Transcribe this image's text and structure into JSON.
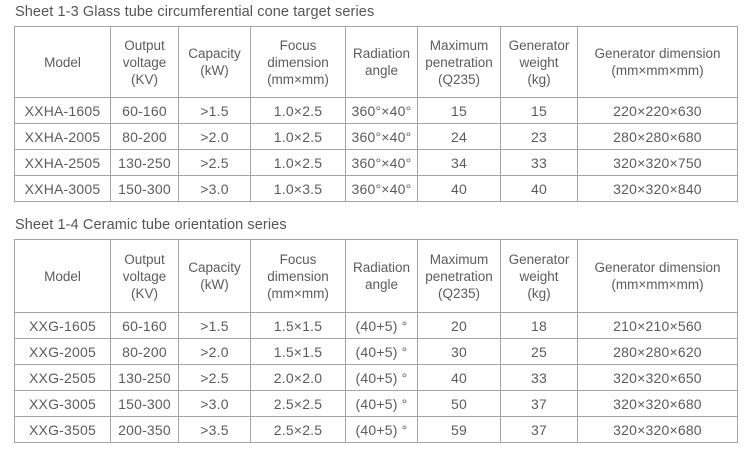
{
  "colors": {
    "text": "#5c5c5c",
    "border": "#a4a4a4",
    "background": "#ffffff"
  },
  "tables": [
    {
      "title": "Sheet 1-3 Glass tube circumferential cone target series",
      "headers": [
        {
          "id": "model",
          "lines": [
            "Model"
          ]
        },
        {
          "id": "output-voltage",
          "lines": [
            "Output",
            "voltage",
            "(KV)"
          ]
        },
        {
          "id": "capacity",
          "lines": [
            "Capacity",
            "(kW)"
          ]
        },
        {
          "id": "focus-dimension",
          "lines": [
            "Focus",
            "dimension",
            "(mm×mm)"
          ]
        },
        {
          "id": "radiation-angle",
          "lines": [
            "Radiation",
            "angle"
          ]
        },
        {
          "id": "maximum-penetration",
          "lines": [
            "Maximum",
            "penetration",
            "(Q235)"
          ]
        },
        {
          "id": "generator-weight",
          "lines": [
            "Generator",
            "weight",
            "(kg)"
          ]
        },
        {
          "id": "generator-dimension",
          "lines": [
            "Generator dimension",
            "(mm×mm×mm)"
          ]
        }
      ],
      "rows": [
        [
          "XXHA-1605",
          "60-160",
          ">1.5",
          "1.0×2.5",
          "360°×40°",
          "15",
          "15",
          "220×220×630"
        ],
        [
          "XXHA-2005",
          "80-200",
          ">2.0",
          "1.0×2.5",
          "360°×40°",
          "24",
          "23",
          "280×280×680"
        ],
        [
          "XXHA-2505",
          "130-250",
          ">2.5",
          "1.0×2.5",
          "360°×40°",
          "34",
          "33",
          "320×320×750"
        ],
        [
          "XXHA-3005",
          "150-300",
          ">3.0",
          "1.0×3.5",
          "360°×40°",
          "40",
          "40",
          "320×320×840"
        ]
      ]
    },
    {
      "title": "Sheet 1-4 Ceramic tube orientation series",
      "headers": [
        {
          "id": "model",
          "lines": [
            "Model"
          ]
        },
        {
          "id": "output-voltage",
          "lines": [
            "Output",
            "voltage",
            "(KV)"
          ]
        },
        {
          "id": "capacity",
          "lines": [
            "Capacity",
            "(kW)"
          ]
        },
        {
          "id": "focus-dimension",
          "lines": [
            "Focus",
            "dimension",
            "(mm×mm)"
          ]
        },
        {
          "id": "radiation-angle",
          "lines": [
            "Radiation",
            "angle"
          ]
        },
        {
          "id": "maximum-penetration",
          "lines": [
            "Maximum",
            "penetration",
            "(Q235)"
          ]
        },
        {
          "id": "generator-weight",
          "lines": [
            "Generator",
            "weight",
            "(kg)"
          ]
        },
        {
          "id": "generator-dimension",
          "lines": [
            "Generator dimension",
            "(mm×mm×mm)"
          ]
        }
      ],
      "rows": [
        [
          "XXG-1605",
          "60-160",
          ">1.5",
          "1.5×1.5",
          "(40+5) °",
          "20",
          "18",
          "210×210×560"
        ],
        [
          "XXG-2005",
          "80-200",
          ">2.0",
          "1.5×1.5",
          "(40+5) °",
          "30",
          "25",
          "280×280×620"
        ],
        [
          "XXG-2505",
          "130-250",
          ">2.5",
          "2.0×2.0",
          "(40+5) °",
          "40",
          "33",
          "320×320×650"
        ],
        [
          "XXG-3005",
          "150-300",
          ">3.0",
          "2.5×2.5",
          "(40+5) °",
          "50",
          "37",
          "320×320×680"
        ],
        [
          "XXG-3505",
          "200-350",
          ">3.5",
          "2.5×2.5",
          "(40+5) °",
          "59",
          "37",
          "320×320×680"
        ]
      ]
    }
  ]
}
